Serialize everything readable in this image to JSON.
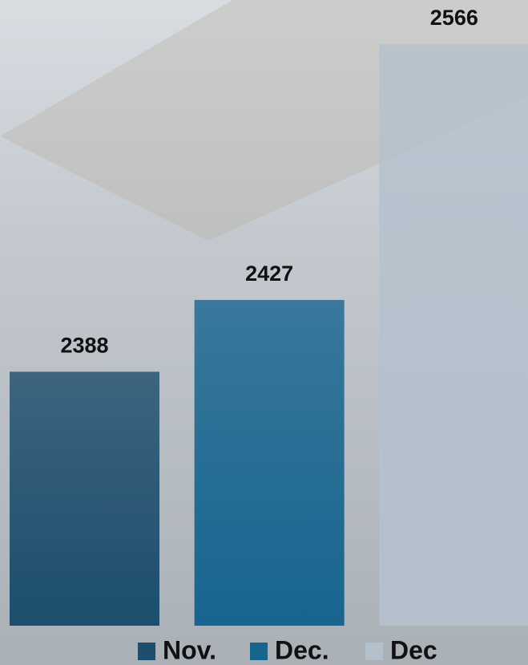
{
  "chart_data": {
    "type": "bar",
    "series": [
      {
        "name": "Nov.",
        "color": "#1d4e6e",
        "values": [
          2388
        ]
      },
      {
        "name": "Dec.",
        "color": "#176690",
        "values": [
          2427
        ]
      },
      {
        "name": "Dec",
        "color": "#b4c1cc",
        "values": [
          2566
        ]
      }
    ],
    "ylim": [
      2250,
      2590
    ]
  }
}
